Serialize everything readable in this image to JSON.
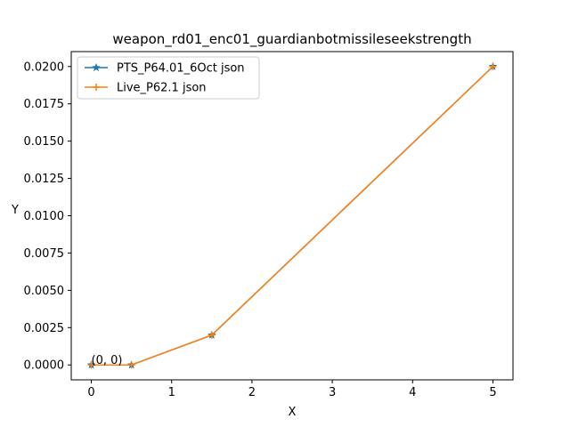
{
  "chart_data": {
    "type": "line",
    "title": "weapon_rd01_enc01_guardianbotmissileseekstrength",
    "xlabel": "X",
    "ylabel": "Y",
    "xlim": [
      -0.25,
      5.25
    ],
    "ylim": [
      -0.001,
      0.021
    ],
    "xticks": [
      0,
      1,
      2,
      3,
      4,
      5
    ],
    "yticks": [
      0.0,
      0.0025,
      0.005,
      0.0075,
      0.01,
      0.0125,
      0.015,
      0.0175,
      0.02
    ],
    "xtick_labels": [
      "0",
      "1",
      "2",
      "3",
      "4",
      "5"
    ],
    "ytick_labels": [
      "0.0000",
      "0.0025",
      "0.0050",
      "0.0075",
      "0.0100",
      "0.0125",
      "0.0150",
      "0.0175",
      "0.0200"
    ],
    "grid": false,
    "legend_position": "top-left",
    "series": [
      {
        "name": "PTS_P64.01_6Oct json",
        "color": "#1f77b4",
        "marker": "star",
        "x": [
          0,
          0.5,
          1.5,
          5
        ],
        "y": [
          0.0,
          0.0,
          0.002,
          0.02
        ]
      },
      {
        "name": "Live_P62.1 json",
        "color": "#ff7f0e",
        "marker": "plus",
        "x": [
          0,
          0.5,
          1.5,
          5
        ],
        "y": [
          0.0,
          0.0,
          0.002,
          0.02
        ]
      }
    ],
    "annotations": [
      {
        "text": "(0, 0)",
        "x": 0,
        "y": 0
      }
    ]
  }
}
